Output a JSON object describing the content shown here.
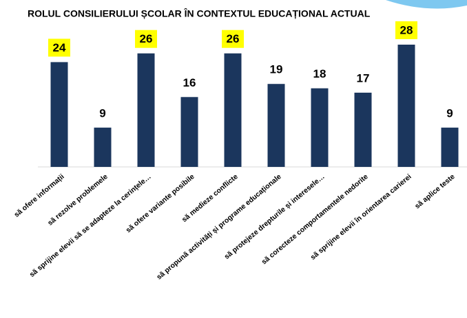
{
  "chart_data": {
    "type": "bar",
    "title": "ROLUL CONSILIERULUI ȘCOLAR ÎN CONTEXTUL EDUCAȚIONAL ACTUAL",
    "categories": [
      "să ofere informații",
      "să rezolve problemele",
      "să sprijine elevii să se adapteze la cerințele…",
      "să ofere variante posibile",
      "să medieze conflicte",
      "să propună activități și programe educaționale",
      "să protejeze drepturile și interesele…",
      "să corecteze comportamentele nedorite",
      "să sprijine elevii în orientarea carierei",
      "să aplice teste"
    ],
    "values": [
      24,
      9,
      26,
      16,
      26,
      19,
      18,
      17,
      28,
      9
    ],
    "color": "#1b365d",
    "highlighted": [
      true,
      false,
      true,
      false,
      true,
      false,
      false,
      false,
      true,
      false
    ],
    "highlight_color": "#ffff00"
  }
}
